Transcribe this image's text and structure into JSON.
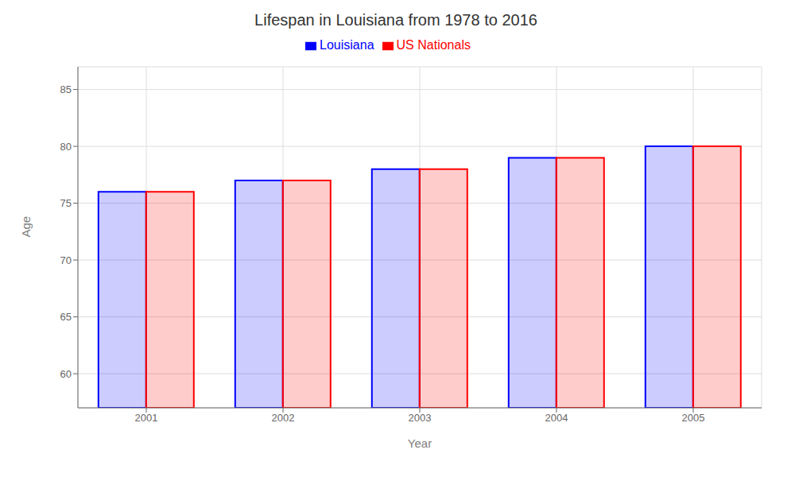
{
  "chart_data": {
    "type": "bar",
    "title": "Lifespan in Louisiana from 1978 to 2016",
    "x_label": "Year",
    "y_label": "Age",
    "categories": [
      "2001",
      "2002",
      "2003",
      "2004",
      "2005"
    ],
    "series": [
      {
        "name": "Louisiana",
        "color": "#0000ff",
        "values": [
          76,
          77,
          78,
          79,
          80
        ]
      },
      {
        "name": "US Nationals",
        "color": "#ff0000",
        "values": [
          76,
          77,
          78,
          79,
          80
        ]
      }
    ],
    "ylim": [
      57,
      87
    ],
    "yticks": [
      60,
      65,
      70,
      75,
      80,
      85
    ],
    "grid": true,
    "legend": "top"
  }
}
